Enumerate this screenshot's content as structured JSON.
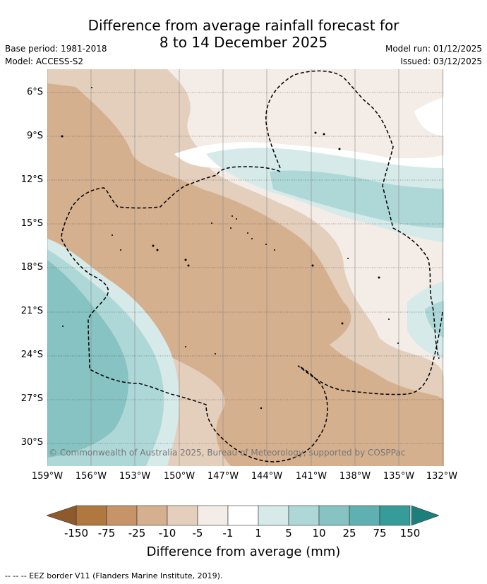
{
  "title": {
    "line1": "Difference from average rainfall forecast for",
    "line2": "8 to 14 December 2025"
  },
  "metadata": {
    "base_period": "Base period: 1981-2018",
    "model": "Model: ACCESS-S2",
    "model_run": "Model run: 01/12/2025",
    "issued": "Issued: 03/12/2025"
  },
  "map": {
    "copyright": "© Commonwealth of Australia 2025, Bureau of Meteorology, supported by COSPPac",
    "lat_labels": [
      "6°S",
      "9°S",
      "12°S",
      "15°S",
      "18°S",
      "21°S",
      "24°S",
      "27°S",
      "30°S"
    ],
    "lon_labels": [
      "159°W",
      "156°W",
      "153°W",
      "150°W",
      "147°W",
      "144°W",
      "141°W",
      "138°W",
      "135°W",
      "132°W"
    ]
  },
  "legend": {
    "title": "Difference from average (mm)",
    "ticks": [
      "-150",
      "-75",
      "-25",
      "-10",
      "-5",
      "-1",
      "1",
      "5",
      "10",
      "25",
      "75",
      "150"
    ],
    "colors": [
      "#8d5a2b",
      "#b07840",
      "#c69468",
      "#d5b08e",
      "#e4cfbd",
      "#f4ece6",
      "#ffffff",
      "#d6eae9",
      "#aed8d7",
      "#86c3c2",
      "#5fb0b0",
      "#369c9a",
      "#1d7f7c"
    ]
  },
  "footer": {
    "eez_note": "--  --  -- EEZ border V11 (Flanders Marine Institute, 2019)."
  }
}
